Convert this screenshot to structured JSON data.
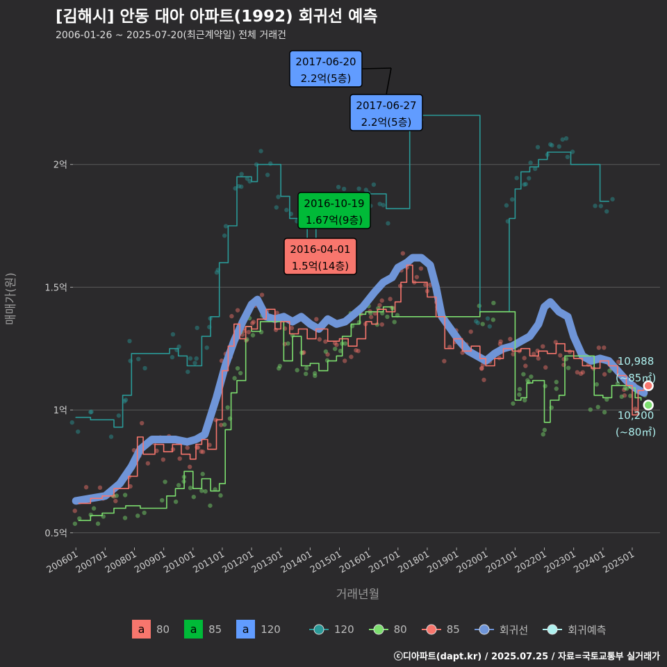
{
  "title": "[김해시] 안동 대아 아파트(1992) 회귀선 예측",
  "subtitle": "2006-01-26 ~ 2025-07-20(최근계약일) 전체 거래건",
  "footer": "ⓒ디아파트(dapt.kr) / 2025.07.25 / 자료=국토교통부 실거래가",
  "colors": {
    "background": "#2b2a2c",
    "s80": "#f8766d",
    "s85": "#00ba38",
    "s85_line": "#7ddf6f",
    "s120": "#619cff",
    "s120_line": "#2a9a98",
    "regression": "#6f95d8",
    "forecast": "#aef0ee",
    "grid": "#5a5a5a"
  },
  "chart_data": {
    "type": "line",
    "xlabel": "거래년월",
    "ylabel": "매매가(원)",
    "xlim": [
      2005.9,
      2025.95
    ],
    "ylim": [
      0.44,
      2.5
    ],
    "unit": "억",
    "y_ticks": [
      {
        "value": 0.5,
        "label": "0.5억"
      },
      {
        "value": 1.0,
        "label": "1억"
      },
      {
        "value": 1.5,
        "label": "1.5억"
      },
      {
        "value": 2.0,
        "label": "2억"
      }
    ],
    "x_ticks": [
      {
        "value": 2006,
        "label": "200601"
      },
      {
        "value": 2007,
        "label": "200701"
      },
      {
        "value": 2008,
        "label": "200801"
      },
      {
        "value": 2009,
        "label": "200901"
      },
      {
        "value": 2010,
        "label": "201001"
      },
      {
        "value": 2011,
        "label": "201101"
      },
      {
        "value": 2012,
        "label": "201201"
      },
      {
        "value": 2013,
        "label": "201301"
      },
      {
        "value": 2014,
        "label": "201401"
      },
      {
        "value": 2015,
        "label": "201501"
      },
      {
        "value": 2016,
        "label": "201601"
      },
      {
        "value": 2017,
        "label": "201701"
      },
      {
        "value": 2018,
        "label": "201801"
      },
      {
        "value": 2019,
        "label": "201901"
      },
      {
        "value": 2020,
        "label": "202001"
      },
      {
        "value": 2021,
        "label": "202101"
      },
      {
        "value": 2022,
        "label": "202201"
      },
      {
        "value": 2023,
        "label": "202301"
      },
      {
        "value": 2024,
        "label": "202401"
      },
      {
        "value": 2025,
        "label": "202501"
      }
    ],
    "series": [
      {
        "name": "80",
        "key": "s80",
        "values": [
          [
            2006.1,
            0.62
          ],
          [
            2006.5,
            0.64
          ],
          [
            2006.9,
            0.65
          ],
          [
            2007.3,
            0.68
          ],
          [
            2007.8,
            0.73
          ],
          [
            2008.1,
            0.89
          ],
          [
            2008.3,
            0.82
          ],
          [
            2008.7,
            0.86
          ],
          [
            2009.0,
            0.83
          ],
          [
            2009.3,
            0.86
          ],
          [
            2009.6,
            0.82
          ],
          [
            2009.9,
            0.8
          ],
          [
            2010.1,
            0.86
          ],
          [
            2010.3,
            0.88
          ],
          [
            2010.5,
            0.84
          ],
          [
            2010.8,
            0.96
          ],
          [
            2011.0,
            1.16
          ],
          [
            2011.2,
            1.26
          ],
          [
            2011.4,
            1.35
          ],
          [
            2011.6,
            1.29
          ],
          [
            2011.8,
            1.34
          ],
          [
            2012.0,
            1.33
          ],
          [
            2012.2,
            1.37
          ],
          [
            2012.5,
            1.41
          ],
          [
            2012.8,
            1.33
          ],
          [
            2013.0,
            1.36
          ],
          [
            2013.3,
            1.31
          ],
          [
            2013.6,
            1.33
          ],
          [
            2013.9,
            1.29
          ],
          [
            2014.2,
            1.33
          ],
          [
            2014.6,
            1.28
          ],
          [
            2015.0,
            1.29
          ],
          [
            2015.3,
            1.26
          ],
          [
            2015.6,
            1.29
          ],
          [
            2015.9,
            1.36
          ],
          [
            2016.1,
            1.35
          ],
          [
            2016.3,
            1.41
          ],
          [
            2016.6,
            1.4
          ],
          [
            2016.9,
            1.44
          ],
          [
            2017.1,
            1.52
          ],
          [
            2017.3,
            1.59
          ],
          [
            2017.5,
            1.52
          ],
          [
            2017.8,
            1.52
          ],
          [
            2018.0,
            1.46
          ],
          [
            2018.3,
            1.38
          ],
          [
            2018.6,
            1.25
          ],
          [
            2018.9,
            1.29
          ],
          [
            2019.2,
            1.24
          ],
          [
            2019.5,
            1.26
          ],
          [
            2019.8,
            1.21
          ],
          [
            2020.0,
            1.18
          ],
          [
            2020.3,
            1.21
          ],
          [
            2020.6,
            1.25
          ],
          [
            2020.9,
            1.24
          ],
          [
            2021.2,
            1.25
          ],
          [
            2021.5,
            1.22
          ],
          [
            2021.8,
            1.24
          ],
          [
            2022.1,
            1.23
          ],
          [
            2022.4,
            1.27
          ],
          [
            2022.7,
            1.24
          ],
          [
            2023.0,
            1.21
          ],
          [
            2023.3,
            1.18
          ],
          [
            2023.6,
            1.17
          ],
          [
            2023.9,
            1.2
          ],
          [
            2024.2,
            1.18
          ],
          [
            2024.5,
            1.14
          ],
          [
            2024.8,
            1.1
          ],
          [
            2025.0,
            0.98
          ],
          [
            2025.2,
            1.08
          ],
          [
            2025.4,
            1.09
          ]
        ]
      },
      {
        "name": "85",
        "key": "s85",
        "values": [
          [
            2006.1,
            0.55
          ],
          [
            2006.5,
            0.57
          ],
          [
            2006.9,
            0.58
          ],
          [
            2007.3,
            0.6
          ],
          [
            2007.7,
            0.61
          ],
          [
            2008.2,
            0.6
          ],
          [
            2009.1,
            0.65
          ],
          [
            2009.4,
            0.68
          ],
          [
            2009.7,
            0.75
          ],
          [
            2010.0,
            0.68
          ],
          [
            2010.3,
            0.72
          ],
          [
            2010.6,
            0.67
          ],
          [
            2010.9,
            0.7
          ],
          [
            2011.1,
            0.92
          ],
          [
            2011.3,
            1.07
          ],
          [
            2011.5,
            1.12
          ],
          [
            2011.8,
            1.34
          ],
          [
            2012.0,
            1.32
          ],
          [
            2012.3,
            1.36
          ],
          [
            2013.1,
            1.2
          ],
          [
            2013.4,
            1.3
          ],
          [
            2013.7,
            1.18
          ],
          [
            2014.0,
            1.19
          ],
          [
            2014.3,
            1.16
          ],
          [
            2014.6,
            1.2
          ],
          [
            2014.9,
            1.22
          ],
          [
            2015.1,
            1.3
          ],
          [
            2015.4,
            1.35
          ],
          [
            2015.7,
            1.39
          ],
          [
            2015.9,
            1.4
          ],
          [
            2016.2,
            1.4
          ],
          [
            2016.5,
            1.42
          ],
          [
            2016.8,
            1.38
          ],
          [
            2017.0,
            1.38
          ],
          [
            2019.8,
            1.4
          ],
          [
            2020.1,
            1.4
          ],
          [
            2021.0,
            1.04
          ],
          [
            2021.2,
            1.05
          ],
          [
            2021.4,
            1.11
          ],
          [
            2021.6,
            1.12
          ],
          [
            2022.0,
            0.95
          ],
          [
            2022.2,
            1.04
          ],
          [
            2022.5,
            1.06
          ],
          [
            2022.7,
            1.22
          ],
          [
            2023.7,
            1.06
          ],
          [
            2024.0,
            1.05
          ],
          [
            2024.3,
            1.1
          ],
          [
            2024.6,
            1.1
          ],
          [
            2024.9,
            1.09
          ],
          [
            2025.1,
            1.05
          ],
          [
            2025.3,
            1.04
          ]
        ]
      },
      {
        "name": "120",
        "key": "s120",
        "values": [
          [
            2006.0,
            0.97
          ],
          [
            2006.5,
            0.96
          ],
          [
            2007.3,
            0.93
          ],
          [
            2007.6,
            1.06
          ],
          [
            2007.9,
            1.23
          ],
          [
            2008.2,
            1.23
          ],
          [
            2009.2,
            1.25
          ],
          [
            2009.5,
            1.22
          ],
          [
            2009.8,
            1.18
          ],
          [
            2010.0,
            1.18
          ],
          [
            2010.3,
            1.3
          ],
          [
            2010.6,
            1.38
          ],
          [
            2010.9,
            1.6
          ],
          [
            2011.2,
            1.75
          ],
          [
            2011.5,
            1.95
          ],
          [
            2011.8,
            1.95
          ],
          [
            2012.0,
            1.93
          ],
          [
            2012.2,
            2.0
          ],
          [
            2012.5,
            2.0
          ],
          [
            2013.0,
            1.87
          ],
          [
            2013.3,
            1.78
          ],
          [
            2013.6,
            1.75
          ],
          [
            2013.9,
            1.66
          ],
          [
            2014.2,
            1.76
          ],
          [
            2014.5,
            1.83
          ],
          [
            2014.8,
            1.85
          ],
          [
            2015.1,
            1.85
          ],
          [
            2015.5,
            1.84
          ],
          [
            2015.8,
            1.86
          ],
          [
            2016.0,
            1.88
          ],
          [
            2016.3,
            1.88
          ],
          [
            2016.6,
            1.82
          ],
          [
            2017.4,
            2.18
          ],
          [
            2017.7,
            2.2
          ],
          [
            2019.8,
            1.4
          ],
          [
            2020.1,
            1.4
          ],
          [
            2020.8,
            1.78
          ],
          [
            2021.0,
            1.9
          ],
          [
            2021.2,
            1.97
          ],
          [
            2021.5,
            1.99
          ],
          [
            2021.8,
            2.02
          ],
          [
            2022.1,
            2.05
          ],
          [
            2022.4,
            2.05
          ],
          [
            2022.7,
            2.05
          ],
          [
            2022.9,
            2.0
          ],
          [
            2023.9,
            1.85
          ],
          [
            2024.2,
            1.85
          ]
        ]
      },
      {
        "name": "회귀선",
        "key": "regression",
        "values": [
          [
            2006.0,
            0.63
          ],
          [
            2006.5,
            0.64
          ],
          [
            2007.0,
            0.65
          ],
          [
            2007.5,
            0.7
          ],
          [
            2007.9,
            0.77
          ],
          [
            2008.2,
            0.84
          ],
          [
            2008.6,
            0.88
          ],
          [
            2009.0,
            0.88
          ],
          [
            2009.4,
            0.88
          ],
          [
            2009.8,
            0.87
          ],
          [
            2010.1,
            0.88
          ],
          [
            2010.4,
            0.9
          ],
          [
            2010.8,
            1.05
          ],
          [
            2011.1,
            1.18
          ],
          [
            2011.4,
            1.28
          ],
          [
            2011.7,
            1.36
          ],
          [
            2012.0,
            1.43
          ],
          [
            2012.2,
            1.45
          ],
          [
            2012.5,
            1.38
          ],
          [
            2012.8,
            1.37
          ],
          [
            2013.1,
            1.38
          ],
          [
            2013.4,
            1.36
          ],
          [
            2013.7,
            1.38
          ],
          [
            2014.0,
            1.35
          ],
          [
            2014.3,
            1.33
          ],
          [
            2014.6,
            1.37
          ],
          [
            2014.9,
            1.35
          ],
          [
            2015.2,
            1.36
          ],
          [
            2015.5,
            1.39
          ],
          [
            2015.8,
            1.42
          ],
          [
            2016.0,
            1.45
          ],
          [
            2016.2,
            1.48
          ],
          [
            2016.5,
            1.52
          ],
          [
            2016.8,
            1.54
          ],
          [
            2017.0,
            1.58
          ],
          [
            2017.3,
            1.6
          ],
          [
            2017.5,
            1.62
          ],
          [
            2017.8,
            1.62
          ],
          [
            2018.1,
            1.59
          ],
          [
            2018.3,
            1.5
          ],
          [
            2018.5,
            1.38
          ],
          [
            2018.8,
            1.33
          ],
          [
            2019.1,
            1.28
          ],
          [
            2019.4,
            1.24
          ],
          [
            2019.7,
            1.22
          ],
          [
            2020.0,
            1.2
          ],
          [
            2020.3,
            1.23
          ],
          [
            2020.6,
            1.25
          ],
          [
            2020.9,
            1.26
          ],
          [
            2021.2,
            1.28
          ],
          [
            2021.5,
            1.3
          ],
          [
            2021.8,
            1.35
          ],
          [
            2022.0,
            1.42
          ],
          [
            2022.2,
            1.44
          ],
          [
            2022.5,
            1.4
          ],
          [
            2022.8,
            1.38
          ],
          [
            2023.0,
            1.3
          ],
          [
            2023.3,
            1.22
          ],
          [
            2023.6,
            1.2
          ],
          [
            2023.9,
            1.21
          ],
          [
            2024.2,
            1.2
          ],
          [
            2024.5,
            1.16
          ],
          [
            2024.8,
            1.12
          ],
          [
            2025.1,
            1.09
          ],
          [
            2025.4,
            1.07
          ]
        ]
      }
    ],
    "forecasts": [
      {
        "name": "80",
        "key": "s80",
        "x": 2025.55,
        "y": 1.02,
        "label_value": "10,200",
        "label_area": "(~80㎡)"
      },
      {
        "name": "85",
        "key": "s85",
        "x": 2025.55,
        "y": 1.0988,
        "label_value": "10,988",
        "label_area": "(~85㎡)"
      }
    ],
    "annotations": [
      {
        "key": "s120",
        "date": "2017-06-20",
        "text": "2.2억(5층)",
        "x": 2017.47,
        "y": 2.2,
        "anchor": "upper-left"
      },
      {
        "key": "s120",
        "date": "2017-06-27",
        "text": "2.2억(5층)",
        "x": 2017.49,
        "y": 2.2,
        "anchor": "lower"
      },
      {
        "key": "s85",
        "date": "2016-10-19",
        "text": "1.67억(9층)",
        "x": 2016.8,
        "y": 1.67,
        "anchor": "left"
      },
      {
        "key": "s80",
        "date": "2016-04-01",
        "text": "1.5억(14층)",
        "x": 2016.25,
        "y": 1.5,
        "anchor": "left"
      }
    ],
    "legend_fill": [
      {
        "key": "s80",
        "glyph": "a",
        "label": "80"
      },
      {
        "key": "s85",
        "glyph": "a",
        "label": "85"
      },
      {
        "key": "s120",
        "glyph": "a",
        "label": "120"
      }
    ],
    "legend_line": [
      {
        "key": "s120_line",
        "label": "120"
      },
      {
        "key": "s85_line",
        "label": "80"
      },
      {
        "key": "s80",
        "label": "85"
      },
      {
        "key": "regression",
        "label": "회귀선"
      },
      {
        "key": "forecast",
        "label": "회귀예측"
      }
    ]
  }
}
